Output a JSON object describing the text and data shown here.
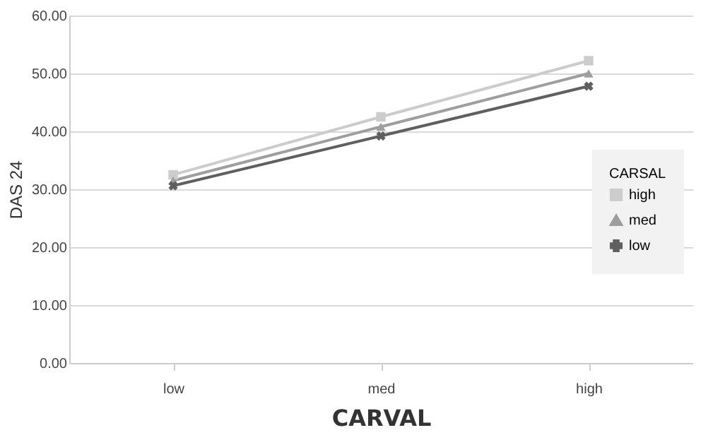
{
  "chart_data": {
    "type": "line",
    "xlabel": "CARVAL",
    "ylabel": "DAS 24",
    "legend_title": "CARSAL",
    "categories": [
      "low",
      "med",
      "high"
    ],
    "series": [
      {
        "name": "high",
        "color": "#cccccc",
        "marker": "square",
        "values": [
          32.5,
          42.5,
          52.2
        ]
      },
      {
        "name": "med",
        "color": "#9e9e9e",
        "marker": "triangle",
        "values": [
          31.5,
          40.8,
          50.0
        ]
      },
      {
        "name": "low",
        "color": "#5f5f5f",
        "marker": "cross",
        "values": [
          30.6,
          39.2,
          47.8
        ]
      }
    ],
    "ylim": [
      0,
      60
    ],
    "yticks": [
      {
        "value": 0,
        "label": "0.00"
      },
      {
        "value": 10,
        "label": "10.00"
      },
      {
        "value": 20,
        "label": "20.00"
      },
      {
        "value": 30,
        "label": "30.00"
      },
      {
        "value": 40,
        "label": "40.00"
      },
      {
        "value": 50,
        "label": "50.00"
      },
      {
        "value": 60,
        "label": "60.00"
      }
    ],
    "grid": "y",
    "legend": "right",
    "line_style": "solid"
  }
}
